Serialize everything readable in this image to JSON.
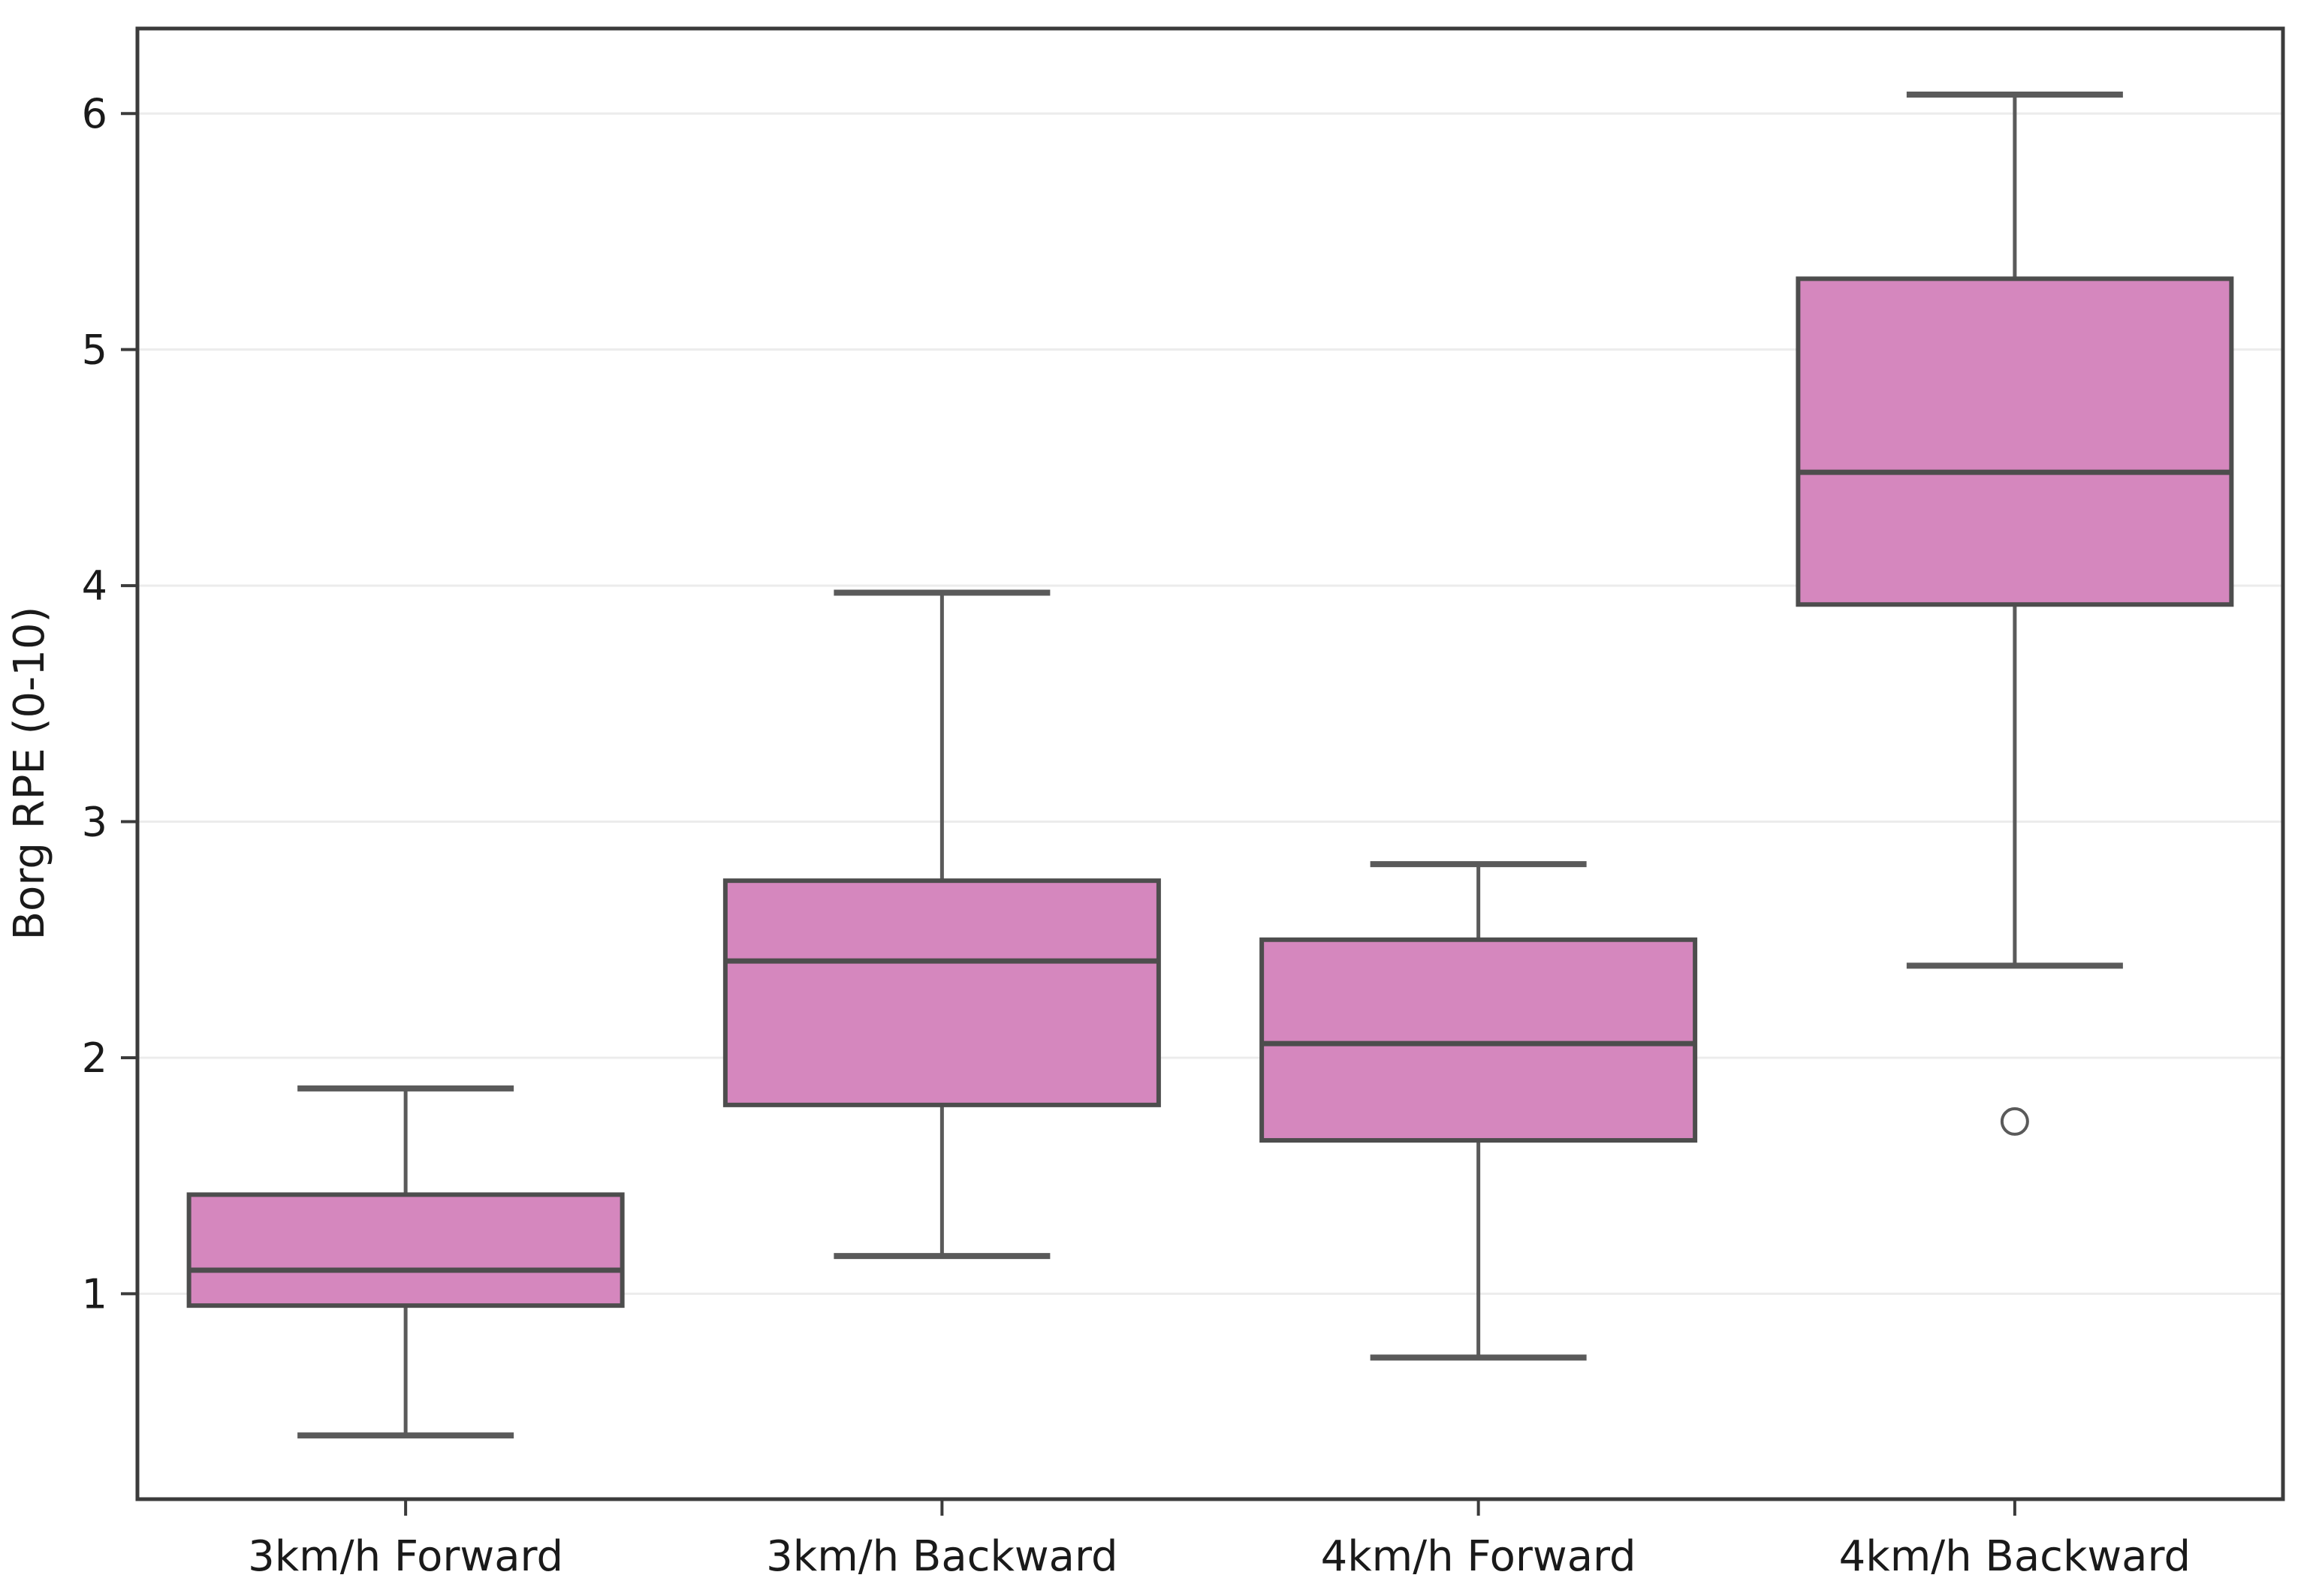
{
  "chart_data": {
    "type": "box",
    "title": "",
    "xlabel": "",
    "ylabel": "Borg RPE (0-10)",
    "categories": [
      "3km/h Forward",
      "3km/h Backward",
      "4km/h Forward",
      "4km/h Backward"
    ],
    "yticks": [
      1,
      2,
      3,
      4,
      5,
      6
    ],
    "ylim": [
      0.13,
      6.36
    ],
    "grid": "horizontal-light-gridlines-at-integer-ticks",
    "legend_position": "none",
    "series": [
      {
        "name": "3km/h Forward",
        "whisker_low": 0.4,
        "q1": 0.95,
        "median": 1.1,
        "q3": 1.42,
        "whisker_high": 1.87,
        "outliers": []
      },
      {
        "name": "3km/h Backward",
        "whisker_low": 1.16,
        "q1": 1.8,
        "median": 2.41,
        "q3": 2.75,
        "whisker_high": 3.97,
        "outliers": []
      },
      {
        "name": "4km/h Forward",
        "whisker_low": 0.73,
        "q1": 1.65,
        "median": 2.06,
        "q3": 2.5,
        "whisker_high": 2.82,
        "outliers": []
      },
      {
        "name": "4km/h Backward",
        "whisker_low": 2.39,
        "q1": 3.92,
        "median": 4.48,
        "q3": 5.3,
        "whisker_high": 6.08,
        "outliers": [
          1.73
        ]
      }
    ],
    "colors": {
      "box_fill": "#D587BE",
      "box_edge": "#4d4d4d",
      "median_line": "#4d4d4d",
      "whisker": "#5a5a5a",
      "cap": "#5a5a5a",
      "outlier_edge": "#5a5a5a",
      "gridline": "#ececec",
      "spine": "#3b3b3b",
      "tick_text": "#1a1a1a"
    }
  }
}
